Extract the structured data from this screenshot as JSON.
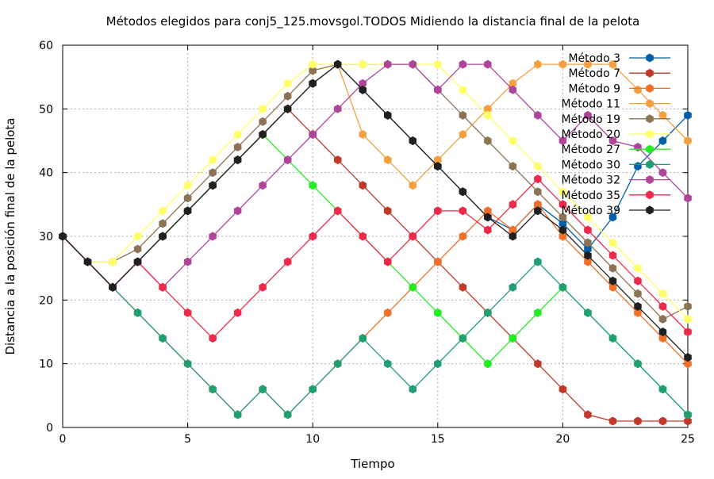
{
  "chart_data": {
    "type": "line",
    "title": "Métodos elegidos para conj5_125.movsgol.TODOS Midiendo la distancia final de la pelota",
    "xlabel": "Tiempo",
    "ylabel": "Distancia a la posición final de la pelota",
    "xlim": [
      0,
      25
    ],
    "ylim": [
      0,
      60
    ],
    "xticks": [
      0,
      5,
      10,
      15,
      20,
      25
    ],
    "yticks": [
      0,
      10,
      20,
      30,
      40,
      50,
      60
    ],
    "grid": true,
    "legend_position": "top-right",
    "x": [
      0,
      1,
      2,
      3,
      4,
      5,
      6,
      7,
      8,
      9,
      10,
      11,
      12,
      13,
      14,
      15,
      16,
      17,
      18,
      19,
      20,
      21,
      22,
      23,
      24,
      25
    ],
    "series": [
      {
        "name": "Método 3",
        "color": "#005fa8",
        "values": [
          30,
          26,
          22,
          26,
          30,
          34,
          38,
          42,
          46,
          50,
          54,
          57,
          53,
          49,
          45,
          41,
          37,
          33,
          31,
          35,
          32,
          28,
          33,
          41,
          45,
          49
        ]
      },
      {
        "name": "Método 7",
        "color": "#c0392b",
        "values": [
          30,
          26,
          22,
          26,
          30,
          34,
          38,
          42,
          46,
          50,
          46,
          42,
          38,
          34,
          30,
          26,
          22,
          18,
          14,
          10,
          6,
          2,
          1,
          1,
          1,
          1
        ]
      },
      {
        "name": "Método 9",
        "color": "#f0702a",
        "values": [
          30,
          26,
          22,
          18,
          14,
          10,
          6,
          2,
          6,
          2,
          6,
          10,
          14,
          18,
          22,
          26,
          30,
          34,
          31,
          35,
          30,
          26,
          22,
          18,
          14,
          10
        ]
      },
      {
        "name": "Método 11",
        "color": "#f5a040",
        "values": [
          30,
          26,
          22,
          26,
          30,
          34,
          38,
          42,
          46,
          50,
          54,
          57,
          46,
          42,
          38,
          42,
          46,
          50,
          54,
          57,
          57,
          57,
          57,
          53,
          49,
          45
        ]
      },
      {
        "name": "Método 19",
        "color": "#8b7355",
        "values": [
          30,
          26,
          26,
          28,
          32,
          36,
          40,
          44,
          48,
          52,
          56,
          57,
          57,
          57,
          57,
          53,
          49,
          45,
          41,
          37,
          33,
          29,
          25,
          21,
          17,
          19
        ]
      },
      {
        "name": "Método 20",
        "color": "#ffff66",
        "values": [
          30,
          26,
          26,
          30,
          34,
          38,
          42,
          46,
          50,
          54,
          57,
          57,
          57,
          57,
          57,
          57,
          53,
          49,
          45,
          41,
          37,
          33,
          29,
          25,
          21,
          17
        ]
      },
      {
        "name": "Método 27",
        "color": "#22ee22",
        "values": [
          30,
          26,
          22,
          26,
          30,
          34,
          38,
          42,
          46,
          42,
          38,
          34,
          30,
          26,
          22,
          18,
          14,
          10,
          14,
          18,
          22,
          18,
          14,
          10,
          6,
          2
        ]
      },
      {
        "name": "Método 30",
        "color": "#20a070",
        "values": [
          30,
          26,
          22,
          18,
          14,
          10,
          6,
          2,
          6,
          2,
          6,
          10,
          14,
          10,
          6,
          10,
          14,
          18,
          22,
          26,
          22,
          18,
          14,
          10,
          6,
          2
        ]
      },
      {
        "name": "Método 32",
        "color": "#b0449a",
        "values": [
          30,
          26,
          22,
          26,
          22,
          26,
          30,
          34,
          38,
          42,
          46,
          50,
          54,
          57,
          57,
          53,
          57,
          57,
          53,
          49,
          45,
          49,
          45,
          44,
          40,
          36
        ]
      },
      {
        "name": "Método 35",
        "color": "#ee2a4a",
        "values": [
          30,
          26,
          22,
          26,
          22,
          18,
          14,
          18,
          22,
          26,
          30,
          34,
          30,
          26,
          30,
          34,
          34,
          31,
          35,
          39,
          35,
          31,
          27,
          23,
          19,
          15
        ]
      },
      {
        "name": "Método 39",
        "color": "#202020",
        "values": [
          30,
          26,
          22,
          26,
          30,
          34,
          38,
          42,
          46,
          50,
          54,
          57,
          53,
          49,
          45,
          41,
          37,
          33,
          30,
          34,
          31,
          27,
          23,
          19,
          15,
          11
        ]
      }
    ]
  }
}
